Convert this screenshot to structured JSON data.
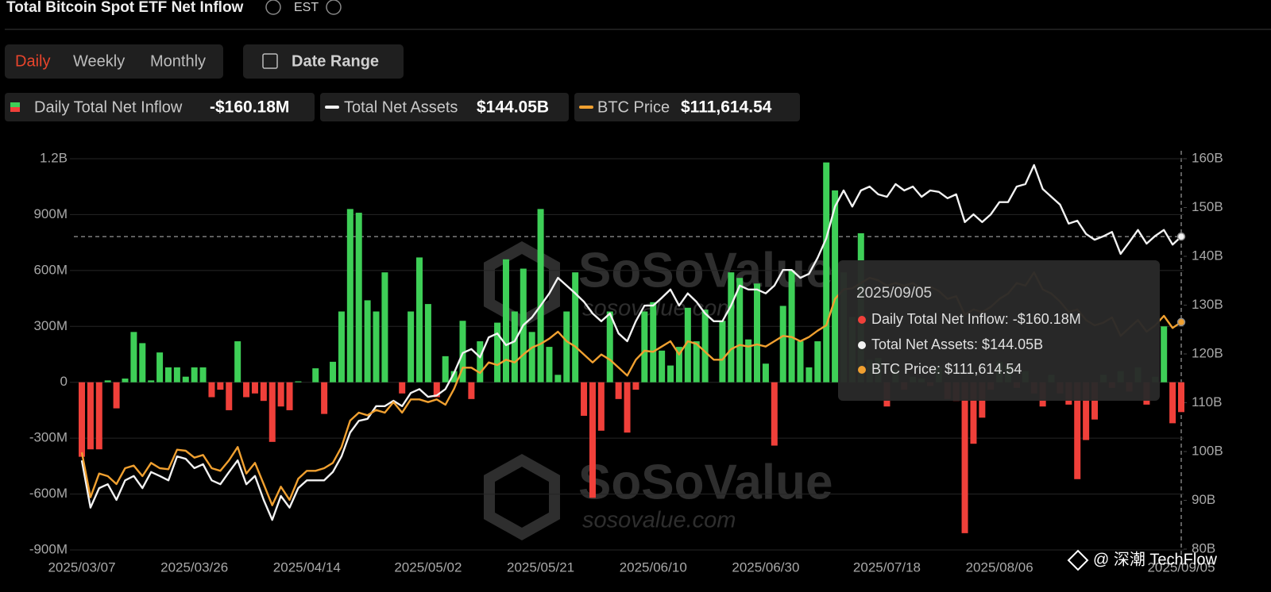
{
  "header": {
    "title": "Total Bitcoin Spot ETF Net Inflow",
    "timezone": "EST"
  },
  "controls": {
    "tabs": [
      "Daily",
      "Weekly",
      "Monthly"
    ],
    "date_range": "Date Range"
  },
  "watermarks": [
    {
      "brand": "SoSoValue",
      "site": "sosovalue.com"
    },
    {
      "brand": "SoSoValue",
      "site": "sosovalue.com"
    }
  ],
  "credit": "@ 深潮 TechFlow",
  "tooltip": {
    "date": "2025/09/05",
    "rows": [
      "Daily Total Net Inflow: -$160.18M",
      "Total Net Assets: $144.05B",
      "BTC Price: $111,614.54"
    ]
  },
  "chart_data": {
    "type": "bar",
    "grid": true,
    "categories": [
      "2025/03/07",
      null,
      null,
      null,
      null,
      null,
      null,
      null,
      null,
      null,
      null,
      null,
      null,
      "2025/03/26",
      null,
      null,
      null,
      null,
      null,
      null,
      null,
      null,
      null,
      null,
      null,
      null,
      "2025/04/14",
      null,
      null,
      null,
      null,
      null,
      null,
      null,
      null,
      null,
      null,
      null,
      null,
      null,
      "2025/05/02",
      null,
      null,
      null,
      null,
      null,
      null,
      null,
      null,
      null,
      null,
      null,
      null,
      "2025/05/21",
      null,
      null,
      null,
      null,
      null,
      null,
      null,
      null,
      null,
      null,
      null,
      null,
      "2025/06/10",
      null,
      null,
      null,
      null,
      null,
      null,
      null,
      null,
      null,
      null,
      null,
      null,
      "2025/06/30",
      null,
      null,
      null,
      null,
      null,
      null,
      null,
      null,
      null,
      null,
      null,
      null,
      null,
      "2025/07/18",
      null,
      null,
      null,
      null,
      null,
      null,
      null,
      null,
      null,
      null,
      null,
      null,
      "2025/08/06",
      null,
      null,
      null,
      null,
      null,
      null,
      null,
      null,
      null,
      null,
      null,
      null,
      null,
      null,
      null,
      null,
      null,
      null,
      null,
      null,
      "2025/09/05"
    ],
    "ylim": [
      -900,
      1200
    ],
    "yticks": [
      {
        "value": -900,
        "label": "-900M"
      },
      {
        "value": -600,
        "label": "-600M"
      },
      {
        "value": -300,
        "label": "-300M"
      },
      0,
      {
        "value": 300,
        "label": "300M"
      },
      {
        "value": 600,
        "label": "600M"
      },
      {
        "value": 900,
        "label": "900M"
      },
      {
        "value": 1200,
        "label": "1.2B"
      }
    ],
    "y2lim": [
      80,
      160
    ],
    "y2ticks": [
      {
        "value": 80,
        "label": "80B"
      },
      {
        "value": 90,
        "label": "90B"
      },
      {
        "value": 100,
        "label": "100B"
      },
      {
        "value": 110,
        "label": "110B"
      },
      {
        "value": 120,
        "label": "120B"
      },
      {
        "value": 130,
        "label": "130B"
      },
      {
        "value": 140,
        "label": "140B"
      },
      {
        "value": 150,
        "label": "150B"
      },
      {
        "value": 160,
        "label": "160B"
      }
    ],
    "y3lim": [
      68700,
      142500
    ],
    "series": [
      {
        "name": "Daily Total Net Inflow",
        "current_label": "-$160.18M",
        "color": "#3ecf57",
        "negative_color": "#f0403a",
        "values": [
          -400,
          -360,
          -360,
          10,
          -140,
          20,
          270,
          210,
          10,
          160,
          80,
          80,
          30,
          80,
          80,
          -80,
          -40,
          -150,
          220,
          -80,
          -60,
          -100,
          -320,
          -130,
          -150,
          5,
          0,
          75,
          -170,
          110,
          380,
          930,
          910,
          440,
          380,
          590,
          0,
          -60,
          380,
          670,
          420,
          -80,
          140,
          60,
          330,
          -90,
          220,
          0,
          320,
          660,
          380,
          610,
          270,
          930,
          190,
          40,
          380,
          590,
          -180,
          -620,
          -260,
          380,
          -90,
          -270,
          -40,
          380,
          430,
          170,
          90,
          190,
          400,
          220,
          390,
          0,
          330,
          590,
          560,
          230,
          530,
          100,
          -340,
          410,
          600,
          220,
          80,
          220,
          1180,
          1030,
          590,
          350,
          800,
          120,
          130,
          -130,
          70,
          -40,
          30,
          20,
          -20,
          80,
          -90,
          -100,
          -810,
          -330,
          -190,
          -40,
          110,
          90,
          -30,
          60,
          -60,
          -130,
          40,
          -60,
          -120,
          -520,
          -310,
          -200,
          40,
          -30,
          60,
          -50,
          80,
          -120,
          30,
          300,
          -220,
          -160.18
        ]
      },
      {
        "name": "Total Net Assets",
        "current_label": "$144.05B",
        "type": "line",
        "axis": "y2",
        "color": "#f2f2f2",
        "values": [
          98.2,
          88.5,
          92.5,
          93.3,
          90.1,
          94.1,
          95.0,
          92.5,
          95.8,
          95.0,
          94.1,
          99.0,
          98.5,
          96.6,
          97.4,
          94.1,
          93.3,
          95.8,
          98.2,
          93.3,
          95.0,
          90.1,
          86.0,
          90.9,
          88.5,
          92.5,
          94.1,
          94.1,
          94.1,
          95.8,
          99.0,
          103.9,
          106.3,
          106.7,
          109.3,
          109.3,
          110.4,
          109.3,
          112.0,
          112.8,
          111.2,
          111.5,
          112.8,
          116.1,
          120.2,
          121.0,
          119.3,
          123.4,
          124.2,
          121.8,
          122.6,
          125.9,
          127.5,
          129.9,
          132.4,
          135.6,
          134.0,
          132.4,
          130.7,
          128.3,
          126.7,
          128.3,
          124.2,
          122.6,
          126.7,
          129.9,
          129.9,
          131.5,
          133.2,
          129.9,
          132.4,
          130.7,
          128.3,
          126.7,
          126.7,
          129.9,
          134.0,
          133.2,
          133.2,
          132.4,
          134.0,
          137.2,
          137.2,
          135.6,
          136.4,
          139.7,
          143.7,
          150.2,
          153.5,
          150.2,
          153.5,
          154.3,
          152.7,
          152.2,
          154.8,
          153.5,
          154.3,
          152.2,
          153.5,
          153.2,
          151.9,
          152.7,
          147.0,
          148.6,
          147.0,
          148.6,
          151.1,
          151.1,
          154.3,
          154.8,
          158.7,
          153.8,
          152.2,
          150.6,
          146.7,
          147.3,
          144.6,
          143.4,
          144.1,
          145.0,
          140.5,
          142.9,
          145.4,
          142.6,
          144.2,
          145.4,
          142.4,
          144.05
        ]
      },
      {
        "name": "BTC Price",
        "current_label": "$111,614.54",
        "type": "line",
        "axis": "y3",
        "color": "#f0a030",
        "values": [
          87000,
          78500,
          83000,
          82500,
          81000,
          84000,
          84500,
          82500,
          85000,
          84000,
          83800,
          87500,
          87300,
          86000,
          86500,
          84000,
          83500,
          85500,
          88000,
          83000,
          85000,
          81000,
          77000,
          80500,
          78000,
          82000,
          83500,
          83500,
          84000,
          85000,
          88000,
          93000,
          94500,
          94000,
          95000,
          94500,
          96500,
          94500,
          97000,
          97000,
          96500,
          97000,
          96000,
          99000,
          103000,
          103000,
          102000,
          104000,
          103500,
          104500,
          104000,
          105500,
          106800,
          107500,
          108500,
          109800,
          108000,
          107000,
          105500,
          104000,
          105500,
          104500,
          103000,
          101500,
          104500,
          106200,
          106000,
          107000,
          108000,
          105500,
          108000,
          107500,
          106000,
          104500,
          104500,
          106500,
          107300,
          107000,
          107400,
          107000,
          108000,
          109000,
          108800,
          108000,
          108800,
          110000,
          111000,
          116000,
          117800,
          118000,
          119000,
          120000,
          119500,
          118500,
          119000,
          118500,
          119000,
          117800,
          118300,
          117500,
          116000,
          116500,
          113000,
          114000,
          113500,
          114500,
          116000,
          117000,
          119000,
          118500,
          121000,
          117800,
          117000,
          115500,
          113500,
          114000,
          112000,
          111000,
          111500,
          112500,
          109000,
          110500,
          112000,
          109800,
          111000,
          112800,
          110500,
          111614.54
        ]
      }
    ]
  }
}
